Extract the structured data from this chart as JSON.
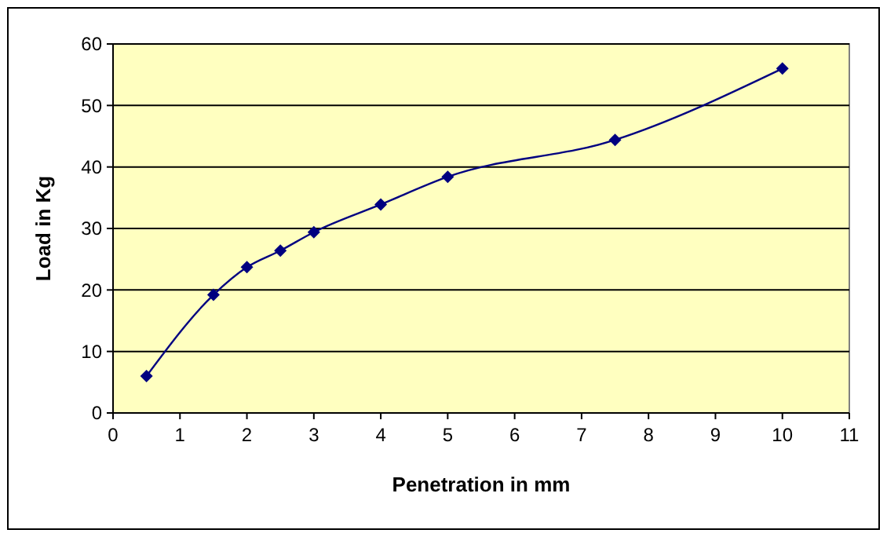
{
  "chart_data": {
    "type": "line",
    "xlabel": "Penetration in mm",
    "ylabel": "Load in Kg",
    "x": [
      0.5,
      1.5,
      2,
      2.5,
      3,
      4,
      5,
      7.5,
      10
    ],
    "series": [
      {
        "color": "#000080",
        "values": [
          6,
          19.2,
          23.7,
          26.4,
          29.4,
          33.9,
          38.4,
          44.4,
          56
        ]
      }
    ],
    "xlim": [
      0,
      11
    ],
    "xticks": [
      0,
      1,
      2,
      3,
      4,
      5,
      6,
      7,
      8,
      9,
      10,
      11
    ],
    "ylim": [
      0,
      60
    ],
    "yticks": [
      0,
      10,
      20,
      30,
      40,
      50,
      60
    ],
    "grid": "y",
    "marker": "diamond",
    "line_style": "solid"
  }
}
